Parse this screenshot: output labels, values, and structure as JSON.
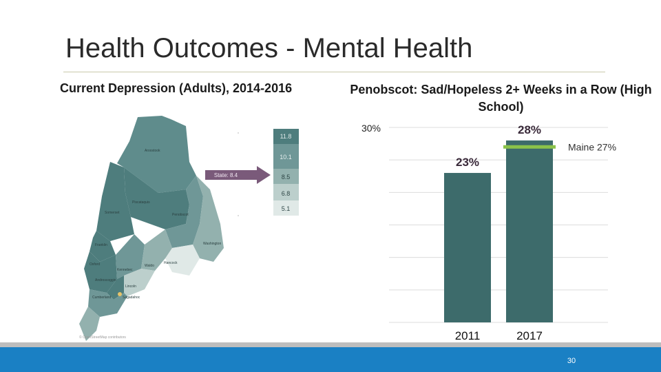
{
  "slide": {
    "title": "Health Outcomes - Mental Health",
    "page_number": "30"
  },
  "left_panel": {
    "subtitle": "Current Depression (Adults), 2014-2016",
    "state_label": "State: 8.4",
    "legend_values": [
      "11.8",
      "10.1",
      "8.5",
      "6.8",
      "5.1"
    ],
    "legend_colors": [
      "#4e7d7d",
      "#6f9797",
      "#93b1ae",
      "#bccfcc",
      "#e0e9e7"
    ],
    "county_labels": [
      "Aroostook",
      "Piscataquis",
      "Penobscot",
      "Somerset",
      "Franklin",
      "Washington",
      "Hancock",
      "Oxford",
      "Kennebec",
      "Waldo",
      "Androscoggin",
      "Lincoln",
      "Cumberland",
      "Sagadahoc"
    ],
    "attribution": "© OpenStreetMap contributors"
  },
  "right_panel": {
    "subtitle": "Penobscot: Sad/Hopeless 2+ Weeks in a Row (High School)",
    "maine_line_label": "Maine 27%",
    "maine_line_color": "#8bc34a",
    "bar_color": "#3d6b6b"
  },
  "chart_data": {
    "type": "bar",
    "categories": [
      "2011",
      "2017"
    ],
    "values": [
      23,
      28
    ],
    "data_labels": [
      "23%",
      "28%"
    ],
    "ylim": [
      0,
      30
    ],
    "y_tick_labels": [
      "30%"
    ],
    "reference_line": {
      "label": "Maine 27%",
      "value": 27
    },
    "grid": true
  }
}
